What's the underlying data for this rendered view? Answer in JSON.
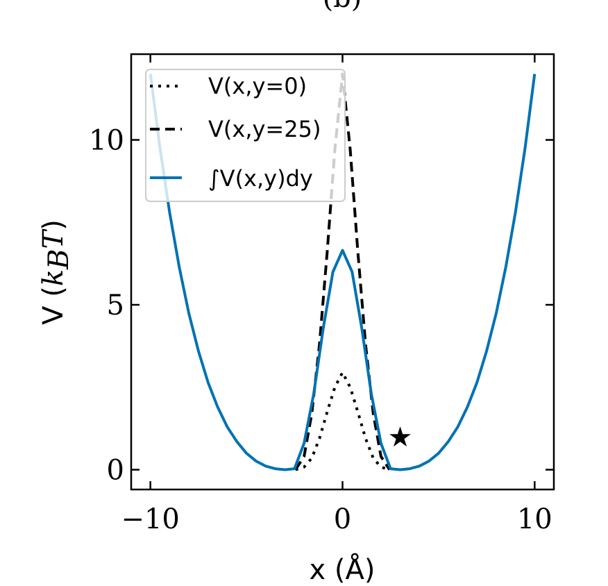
{
  "chart_data": {
    "type": "line",
    "title": "(b)",
    "xlabel": "x (Å)",
    "ylabel": "V (k_B T)",
    "ylabel_prefix": "V (",
    "ylabel_k": "k",
    "ylabel_sub": "B",
    "ylabel_T": "T",
    "ylabel_suffix": ")",
    "xlim": [
      -11,
      11
    ],
    "ylim": [
      -0.6,
      12.6
    ],
    "xticks": [
      -10,
      0,
      10
    ],
    "xtick_labels": [
      "−10",
      "0",
      "10"
    ],
    "yticks": [
      0,
      5,
      10
    ],
    "ytick_labels": [
      "0",
      "5",
      "10"
    ],
    "grid": false,
    "legend_position": "top-left",
    "series": [
      {
        "name": "V(x,y=0)",
        "style": "dotted",
        "color": "#000000",
        "x": [
          -2.45,
          -2.0,
          -1.6,
          -1.2,
          -0.8,
          -0.4,
          0.0,
          0.4,
          0.8,
          1.2,
          1.6,
          2.0,
          2.45
        ],
        "y": [
          0.0,
          0.08,
          0.35,
          0.95,
          1.75,
          2.5,
          2.95,
          2.5,
          1.75,
          0.95,
          0.35,
          0.08,
          0.0
        ]
      },
      {
        "name": "V(x,y=25)",
        "style": "dashed",
        "color": "#000000",
        "x": [
          -2.45,
          -2.0,
          -1.6,
          -1.2,
          -0.8,
          -0.4,
          0.0,
          0.4,
          0.8,
          1.2,
          1.6,
          2.0,
          2.45
        ],
        "y": [
          0.0,
          0.4,
          1.7,
          3.8,
          6.6,
          9.7,
          12.0,
          9.7,
          6.6,
          3.8,
          1.7,
          0.4,
          0.0
        ]
      },
      {
        "name": "∫V(x,y)dy",
        "style": "solid",
        "color": "#0072b2",
        "x": [
          -10.0,
          -9.5,
          -9.0,
          -8.5,
          -8.0,
          -7.5,
          -7.0,
          -6.5,
          -6.0,
          -5.5,
          -5.0,
          -4.5,
          -4.0,
          -3.5,
          -3.0,
          -2.5,
          -2.0,
          -1.5,
          -1.0,
          -0.5,
          0.0,
          0.5,
          1.0,
          1.5,
          2.0,
          2.5,
          3.0,
          3.5,
          4.0,
          4.5,
          5.0,
          5.5,
          6.0,
          6.5,
          7.0,
          7.5,
          8.0,
          8.5,
          9.0,
          9.5,
          10.0
        ],
        "y": [
          12.0,
          9.75,
          7.8,
          6.15,
          4.75,
          3.6,
          2.65,
          1.9,
          1.3,
          0.85,
          0.5,
          0.26,
          0.11,
          0.03,
          0.0,
          0.03,
          0.8,
          2.3,
          4.3,
          6.0,
          6.65,
          6.0,
          4.3,
          2.3,
          0.8,
          0.03,
          0.0,
          0.03,
          0.11,
          0.26,
          0.5,
          0.85,
          1.3,
          1.9,
          2.65,
          3.6,
          4.75,
          6.15,
          7.8,
          9.75,
          12.0
        ]
      }
    ],
    "annotations": [
      {
        "type": "marker",
        "symbol": "★",
        "x": 3.0,
        "y": 1.0,
        "color": "#000000"
      }
    ]
  }
}
